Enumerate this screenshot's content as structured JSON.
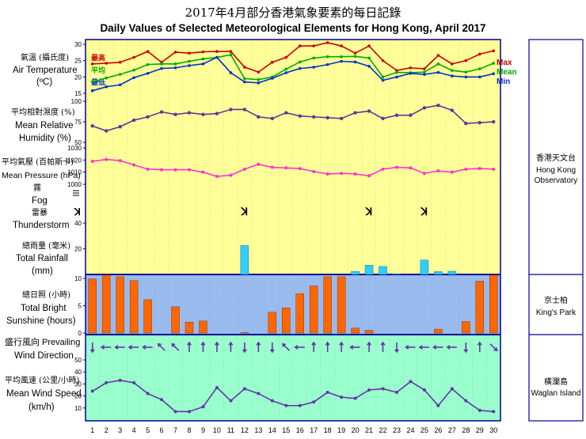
{
  "title": {
    "zh": "2017年4月部分香港氣象要素的每日記錄",
    "en": "Daily Values of Selected Meteorological Elements for Hong Kong, April 2017"
  },
  "colors": {
    "yellow_bg": "#ffff99",
    "blue_bg": "#99bbee",
    "green_bg": "#99ffcc",
    "max": "#cc0000",
    "mean": "#00aa00",
    "min": "#0033cc",
    "humidity": "#663399",
    "pressure": "#ff33cc",
    "rain": "#33ccff",
    "sunshine": "#ff6600",
    "wind": "#6633aa",
    "border": "#000099"
  },
  "labels": {
    "temp_zh": "氣溫 (攝氏度)",
    "temp_en": "Air Temperature",
    "temp_unit": "(ºC)",
    "max_zh": "最高",
    "mean_zh": "平均",
    "min_zh": "最低",
    "max_en": "Max",
    "mean_en": "Mean",
    "min_en": "Min",
    "rh_zh": "平均相對濕度 (%)",
    "rh_en1": "Mean Relative",
    "rh_en2": "Humidity  (%)",
    "pres_zh": "平均氣壓 (百帕斯卡)",
    "pres_en": "Mean Pressure (hPa)",
    "fog_zh": "霧",
    "fog_en": "Fog",
    "thunder_zh": "雷暴",
    "thunder_en": "Thunderstorm",
    "rain_zh": "總雨量 (毫米)",
    "rain_en1": "Total Rainfall",
    "rain_en2": "(mm)",
    "sun_zh": "總日照 (小時)",
    "sun_en1": "Total Bright",
    "sun_en2": "Sunshine  (hours)",
    "wdir_zh": "盛行風向 Prevailing",
    "wdir_en": "Wind Direction",
    "wspd_zh": "平均風速 (公里/小時)",
    "wspd_en1": "Mean Wind Speed",
    "wspd_en2": "(km/h)",
    "hko_zh": "香港天文台",
    "hko_en1": "Hong Kong",
    "hko_en2": "Observatory",
    "kp_zh": "京士柏",
    "kp_en": "King's Park",
    "wi_zh": "橫瀾島",
    "wi_en": "Waglan Island"
  },
  "chart_data": {
    "type": "line",
    "days": [
      1,
      2,
      3,
      4,
      5,
      6,
      7,
      8,
      9,
      10,
      11,
      12,
      13,
      14,
      15,
      16,
      17,
      18,
      19,
      20,
      21,
      22,
      23,
      24,
      25,
      26,
      27,
      28,
      29,
      30
    ],
    "temperature": {
      "ylim": [
        15,
        30
      ],
      "ticks": [
        15,
        20,
        25,
        30
      ],
      "max": [
        24.0,
        24.2,
        24.5,
        26.0,
        27.8,
        24.5,
        27.6,
        27.3,
        27.7,
        27.8,
        27.8,
        23.0,
        21.5,
        24.5,
        26.0,
        29.5,
        29.5,
        30.5,
        29.5,
        27.3,
        29.5,
        25.0,
        22.0,
        22.8,
        22.5,
        26.6,
        24.0,
        25.0,
        27.0,
        28.0
      ],
      "mean": [
        18.5,
        19.7,
        20.8,
        22.1,
        23.8,
        24.0,
        24.0,
        24.8,
        25.5,
        26.0,
        26.8,
        19.5,
        19.2,
        20.0,
        22.4,
        24.6,
        25.8,
        26.2,
        26.2,
        26.3,
        25.8,
        20.0,
        21.4,
        21.3,
        21.5,
        24.0,
        22.0,
        21.5,
        22.5,
        24.2
      ],
      "min": [
        15.8,
        17.0,
        17.6,
        19.8,
        21.1,
        22.6,
        22.8,
        23.5,
        24.0,
        26.0,
        21.3,
        18.5,
        18.2,
        19.6,
        21.3,
        22.6,
        23.0,
        23.8,
        24.8,
        24.6,
        23.3,
        19.0,
        20.0,
        21.1,
        20.8,
        21.4,
        20.3,
        20.0,
        20.0,
        21.0
      ]
    },
    "humidity": {
      "ylim": [
        50,
        100
      ],
      "ticks": [
        50,
        75,
        100
      ],
      "values": [
        70,
        64,
        69,
        77,
        81,
        87,
        84,
        86,
        84,
        85,
        90,
        90,
        81,
        79,
        86,
        82,
        81,
        80,
        79,
        86,
        88,
        79,
        83,
        83,
        92,
        95,
        89,
        73,
        74,
        75
      ]
    },
    "pressure": {
      "ylim": [
        1000,
        1030
      ],
      "ticks": [
        1000,
        1010,
        1020,
        1030
      ],
      "values": [
        1019,
        1020.5,
        1019.5,
        1016,
        1012.5,
        1012,
        1012,
        1012,
        1010,
        1006.5,
        1007.5,
        1012.5,
        1016.5,
        1014,
        1013.5,
        1013,
        1010.5,
        1008.5,
        1009,
        1008.5,
        1007,
        1012.5,
        1014,
        1013.5,
        1009,
        1011,
        1010,
        1012.5,
        1013,
        1012.5
      ]
    },
    "thunderstorm_days": [
      12,
      21,
      25
    ],
    "fog_days": [],
    "rainfall": {
      "ylim": [
        0,
        40
      ],
      "ticks": [
        0,
        20,
        40
      ],
      "values": [
        0,
        0,
        0,
        0,
        0,
        0,
        0,
        0,
        0,
        0,
        0,
        22.5,
        0,
        0,
        0,
        0,
        0,
        0,
        0,
        2.3,
        7.2,
        6.2,
        0.3,
        0,
        11.2,
        2.2,
        2.5,
        0,
        0,
        0
      ]
    },
    "sunshine": {
      "ylim": [
        0,
        10
      ],
      "ticks": [
        0,
        5,
        10
      ],
      "values": [
        9.9,
        10.6,
        10.3,
        9.6,
        6.1,
        0,
        4.8,
        2.0,
        2.2,
        0,
        0,
        0.1,
        0,
        3.8,
        4.6,
        7.2,
        8.6,
        10.3,
        10.3,
        0.9,
        0.5,
        0,
        0,
        0,
        0,
        0.7,
        0,
        2.1,
        9.5,
        10.6
      ]
    },
    "wind_direction": [
      "S",
      "W",
      "W",
      "W",
      "W",
      "NW",
      "NW",
      "N",
      "N",
      "N",
      "N",
      "S",
      "N",
      "S",
      "NW",
      "W",
      "N",
      "N",
      "N",
      "W",
      "N",
      "N",
      "S",
      "W",
      "W",
      "W",
      "W",
      "S",
      "N",
      "SE"
    ],
    "wind_speed": {
      "ylim": [
        0,
        50
      ],
      "ticks": [
        0,
        10,
        20,
        30,
        40,
        50
      ],
      "values": [
        24,
        31,
        33,
        31,
        22,
        17,
        7,
        7,
        11,
        27,
        16,
        26,
        22,
        16,
        12,
        12,
        15,
        23,
        19,
        18,
        25,
        26,
        23,
        32,
        25,
        12,
        26,
        16,
        8,
        7
      ]
    }
  }
}
